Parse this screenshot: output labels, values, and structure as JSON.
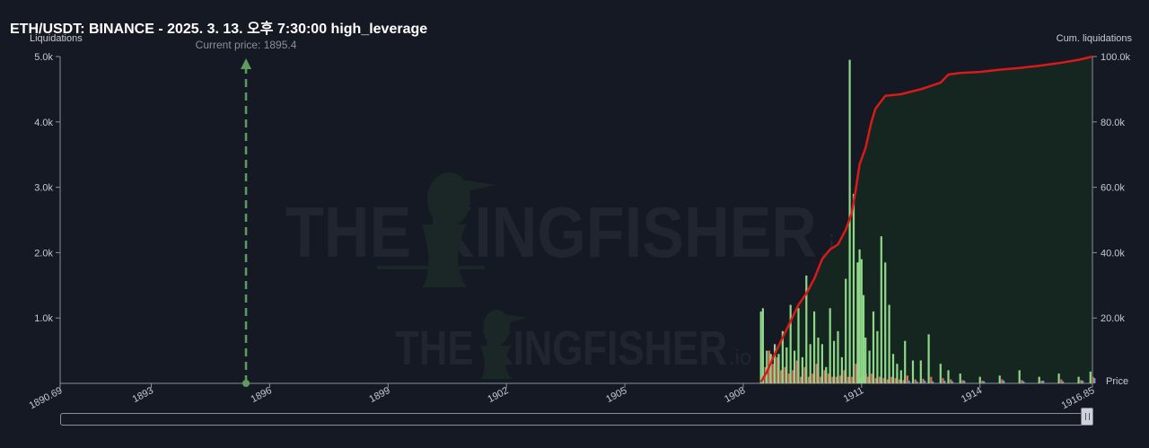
{
  "header": {
    "title": "ETH/USDT: BINANCE - 2025. 3. 13. 오후 7:30:00 high_leverage"
  },
  "watermark": {
    "text": "THE KINGFISHER",
    "suffix": ".io"
  },
  "colors": {
    "background": "#151924",
    "axis": "#8a8f9c",
    "bar_long": "#8fd88a",
    "bar_short": "#e06a5a",
    "bar_other": "#5aa7c7",
    "cum_line": "#d91a1a",
    "cum_area": "#14261f",
    "current_price": "#5e9c5e",
    "text_muted": "#c7cad1"
  },
  "chart_data": {
    "type": "bar",
    "title": "ETH/USDT: BINANCE - 2025. 3. 13. 오후 7:30:00 high_leverage",
    "xlabel": "Price",
    "ylabel": "Liquidations",
    "y2label": "Cum. liquidations",
    "xlim": [
      1890.69,
      1916.85
    ],
    "ylim": [
      0,
      5000
    ],
    "y2lim": [
      0,
      100000
    ],
    "x_ticks": [
      "1890.69",
      "1893",
      "1896",
      "1899",
      "1902",
      "1905",
      "1908",
      "1911",
      "1914",
      "1916.85"
    ],
    "x_tick_values": [
      1890.69,
      1893,
      1896,
      1899,
      1902,
      1905,
      1908,
      1911,
      1914,
      1916.85
    ],
    "y_ticks": [
      "5.0k",
      "4.0k",
      "3.0k",
      "2.0k",
      "1.0k"
    ],
    "y_tick_values": [
      5000,
      4000,
      3000,
      2000,
      1000
    ],
    "y2_ticks": [
      "100.0k",
      "80.0k",
      "60.0k",
      "40.0k",
      "20.0k"
    ],
    "y2_tick_values": [
      100000,
      80000,
      60000,
      40000,
      20000
    ],
    "current_price": {
      "label": "Current price: 1895.4",
      "value": 1895.4
    },
    "grid": false,
    "bars": {
      "x": [
        1908.45,
        1908.5,
        1908.6,
        1908.7,
        1908.8,
        1908.9,
        1909.0,
        1909.1,
        1909.2,
        1909.3,
        1909.4,
        1909.5,
        1909.6,
        1909.7,
        1909.8,
        1909.9,
        1910.0,
        1910.1,
        1910.2,
        1910.3,
        1910.4,
        1910.5,
        1910.6,
        1910.7,
        1910.8,
        1910.9,
        1910.95,
        1911.0,
        1911.05,
        1911.1,
        1911.2,
        1911.3,
        1911.4,
        1911.5,
        1911.6,
        1911.7,
        1911.8,
        1911.9,
        1912.0,
        1912.1,
        1912.3,
        1912.5,
        1912.7,
        1913.0,
        1913.2,
        1913.5,
        1914.0,
        1914.5,
        1915.0,
        1915.5,
        1916.0,
        1916.5,
        1916.8
      ],
      "long": [
        1100,
        1150,
        500,
        450,
        600,
        450,
        800,
        550,
        1200,
        500,
        1150,
        400,
        1650,
        600,
        1100,
        700,
        600,
        250,
        1150,
        650,
        800,
        400,
        1600,
        4950,
        2900,
        1850,
        2050,
        1900,
        1350,
        700,
        500,
        1100,
        800,
        2250,
        1850,
        1200,
        450,
        300,
        200,
        650,
        350,
        350,
        750,
        300,
        200,
        150,
        100,
        120,
        200,
        100,
        150,
        100,
        180
      ],
      "short": [
        0,
        250,
        500,
        300,
        400,
        200,
        250,
        150,
        200,
        350,
        100,
        250,
        100,
        150,
        300,
        100,
        200,
        150,
        100,
        100,
        120,
        200,
        100,
        100,
        300,
        80,
        100,
        120,
        150,
        100,
        150,
        80,
        100,
        80,
        60,
        100,
        80,
        60,
        50,
        120,
        60,
        70,
        100,
        80,
        60,
        50,
        40,
        60,
        50,
        40,
        60,
        50,
        100
      ],
      "other": [
        0,
        60,
        40,
        50,
        30,
        60,
        40,
        30,
        50,
        40,
        30,
        50,
        40,
        30,
        40,
        30,
        30,
        40,
        30,
        40,
        30,
        40,
        30,
        40,
        30,
        40,
        30,
        40,
        30,
        40,
        30,
        40,
        30,
        40,
        30,
        40,
        30,
        40,
        30,
        40,
        30,
        40,
        30,
        40,
        30,
        40,
        30,
        40,
        30,
        40,
        30,
        40,
        80
      ]
    },
    "cumulative": {
      "x": [
        1908.45,
        1908.6,
        1908.8,
        1909.0,
        1909.2,
        1909.4,
        1909.6,
        1909.8,
        1910.0,
        1910.2,
        1910.4,
        1910.6,
        1910.75,
        1910.85,
        1910.95,
        1911.1,
        1911.25,
        1911.35,
        1911.6,
        1912.0,
        1912.5,
        1913.0,
        1913.2,
        1913.5,
        1914.0,
        1914.5,
        1915.0,
        1915.5,
        1916.0,
        1916.5,
        1916.85
      ],
      "y": [
        400,
        3500,
        9000,
        14000,
        19000,
        24000,
        27500,
        32000,
        38000,
        41000,
        42500,
        47000,
        52000,
        59000,
        67000,
        72000,
        80000,
        84000,
        88000,
        88500,
        90000,
        92000,
        94500,
        95000,
        95300,
        96000,
        96500,
        97200,
        98000,
        99000,
        100000
      ]
    }
  }
}
